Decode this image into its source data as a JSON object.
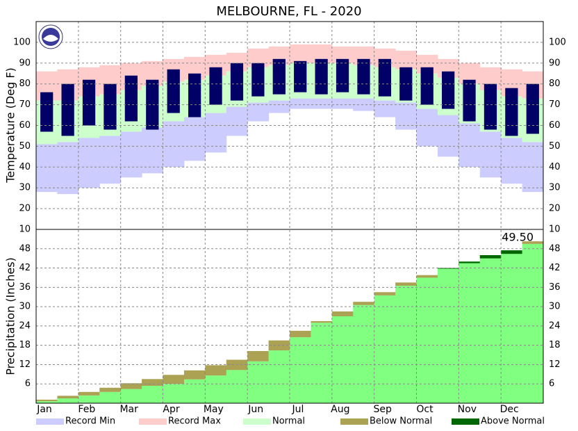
{
  "chart_data": [
    {
      "type": "temperature-band",
      "title": "MELBOURNE, FL - 2020",
      "y_label": "Temperature (Deg F)",
      "ylim": [
        10,
        110
      ],
      "yticks": [
        10,
        20,
        30,
        40,
        50,
        60,
        70,
        80,
        90,
        100
      ],
      "grid": true,
      "series": [
        {
          "name": "Record Min",
          "color": "#ccccff",
          "values": [
            28,
            27,
            30,
            32,
            35,
            37,
            40,
            43,
            47,
            55,
            62,
            66,
            68,
            68,
            68,
            67,
            64,
            58,
            50,
            45,
            40,
            35,
            32,
            28
          ]
        },
        {
          "name": "Record Max",
          "color": "#ffcccc",
          "values": [
            86,
            87,
            88,
            89,
            90,
            91,
            92,
            93,
            94,
            95,
            97,
            98,
            99,
            99,
            98,
            98,
            97,
            96,
            94,
            92,
            90,
            88,
            87,
            86
          ]
        },
        {
          "name": "Normal",
          "color": "#ccffcc",
          "high": [
            72,
            72,
            74,
            75,
            77,
            79,
            81,
            82,
            84,
            86,
            88,
            89,
            90,
            90,
            90,
            89,
            88,
            87,
            85,
            83,
            80,
            77,
            74,
            73
          ],
          "low": [
            51,
            52,
            54,
            55,
            57,
            59,
            62,
            64,
            66,
            69,
            71,
            72,
            73,
            73,
            73,
            73,
            72,
            71,
            68,
            65,
            61,
            57,
            54,
            52
          ]
        }
      ],
      "observed": {
        "color": "#000066",
        "high": [
          76,
          80,
          82,
          80,
          84,
          82,
          87,
          85,
          88,
          90,
          90,
          92,
          91,
          92,
          92,
          92,
          92,
          88,
          88,
          86,
          82,
          80,
          78,
          80
        ],
        "low": [
          57,
          55,
          60,
          58,
          62,
          58,
          66,
          64,
          70,
          72,
          74,
          75,
          76,
          75,
          76,
          75,
          74,
          72,
          70,
          68,
          62,
          58,
          55,
          56
        ]
      }
    },
    {
      "type": "cumulative-precip",
      "y_label": "Precipitation (Inches)",
      "categories": [
        "Jan",
        null,
        "Feb",
        null,
        "Mar",
        null,
        "Apr",
        null,
        "May",
        null,
        "Jun",
        null,
        "Jul",
        null,
        "Aug",
        null,
        "Sep",
        null,
        "Oct",
        null,
        "Nov",
        null,
        "Dec",
        null
      ],
      "ylim": [
        0,
        54
      ],
      "yticks": [
        6,
        12,
        18,
        24,
        30,
        36,
        42,
        48
      ],
      "grid": true,
      "observed": {
        "color": "#80ff80",
        "values": [
          0.6,
          1.5,
          2.4,
          3.5,
          4.4,
          5.4,
          6.0,
          7.4,
          8.6,
          10.3,
          13.0,
          16.4,
          20.5,
          25.0,
          27.0,
          30.5,
          33.5,
          36.5,
          39.0,
          42.0,
          44.0,
          46.0,
          47.5,
          49.5
        ]
      },
      "normal": {
        "values": [
          1.1,
          2.3,
          3.5,
          4.8,
          6.2,
          7.5,
          8.8,
          10.2,
          11.8,
          13.5,
          16.2,
          19.5,
          22.5,
          25.5,
          28.5,
          31.5,
          34.5,
          37.5,
          39.8,
          41.8,
          43.5,
          45.0,
          46.4,
          50.3
        ]
      },
      "series": [
        {
          "name": "Below Normal",
          "color": "#aca254"
        },
        {
          "name": "Above Normal",
          "color": "#006600"
        }
      ],
      "annotation": "49.50"
    }
  ]
}
